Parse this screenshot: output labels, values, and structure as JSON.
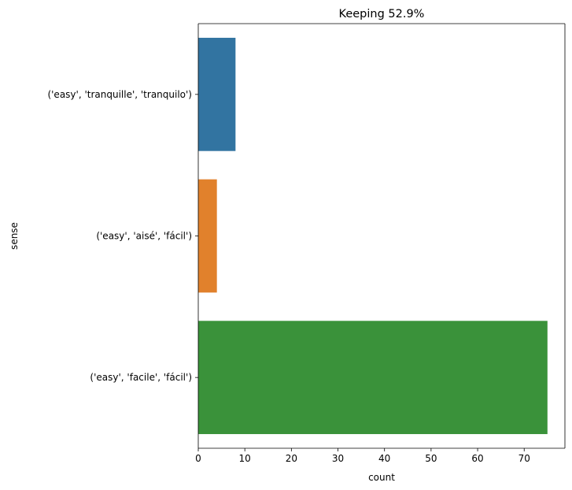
{
  "chart_data": {
    "type": "bar",
    "orientation": "horizontal",
    "title": "Keeping 52.9%",
    "xlabel": "count",
    "ylabel": "sense",
    "categories": [
      "('easy', 'tranquille', 'tranquilo')",
      "('easy', 'aisé', 'fácil')",
      "('easy', 'facile', 'fácil')"
    ],
    "values": [
      8,
      4,
      75
    ],
    "colors": [
      "#3274a1",
      "#e1812c",
      "#3a923a"
    ],
    "xlim": [
      0,
      78.75
    ],
    "xticks": [
      0,
      10,
      20,
      30,
      40,
      50,
      60,
      70
    ],
    "grid": false,
    "legend": "none"
  }
}
